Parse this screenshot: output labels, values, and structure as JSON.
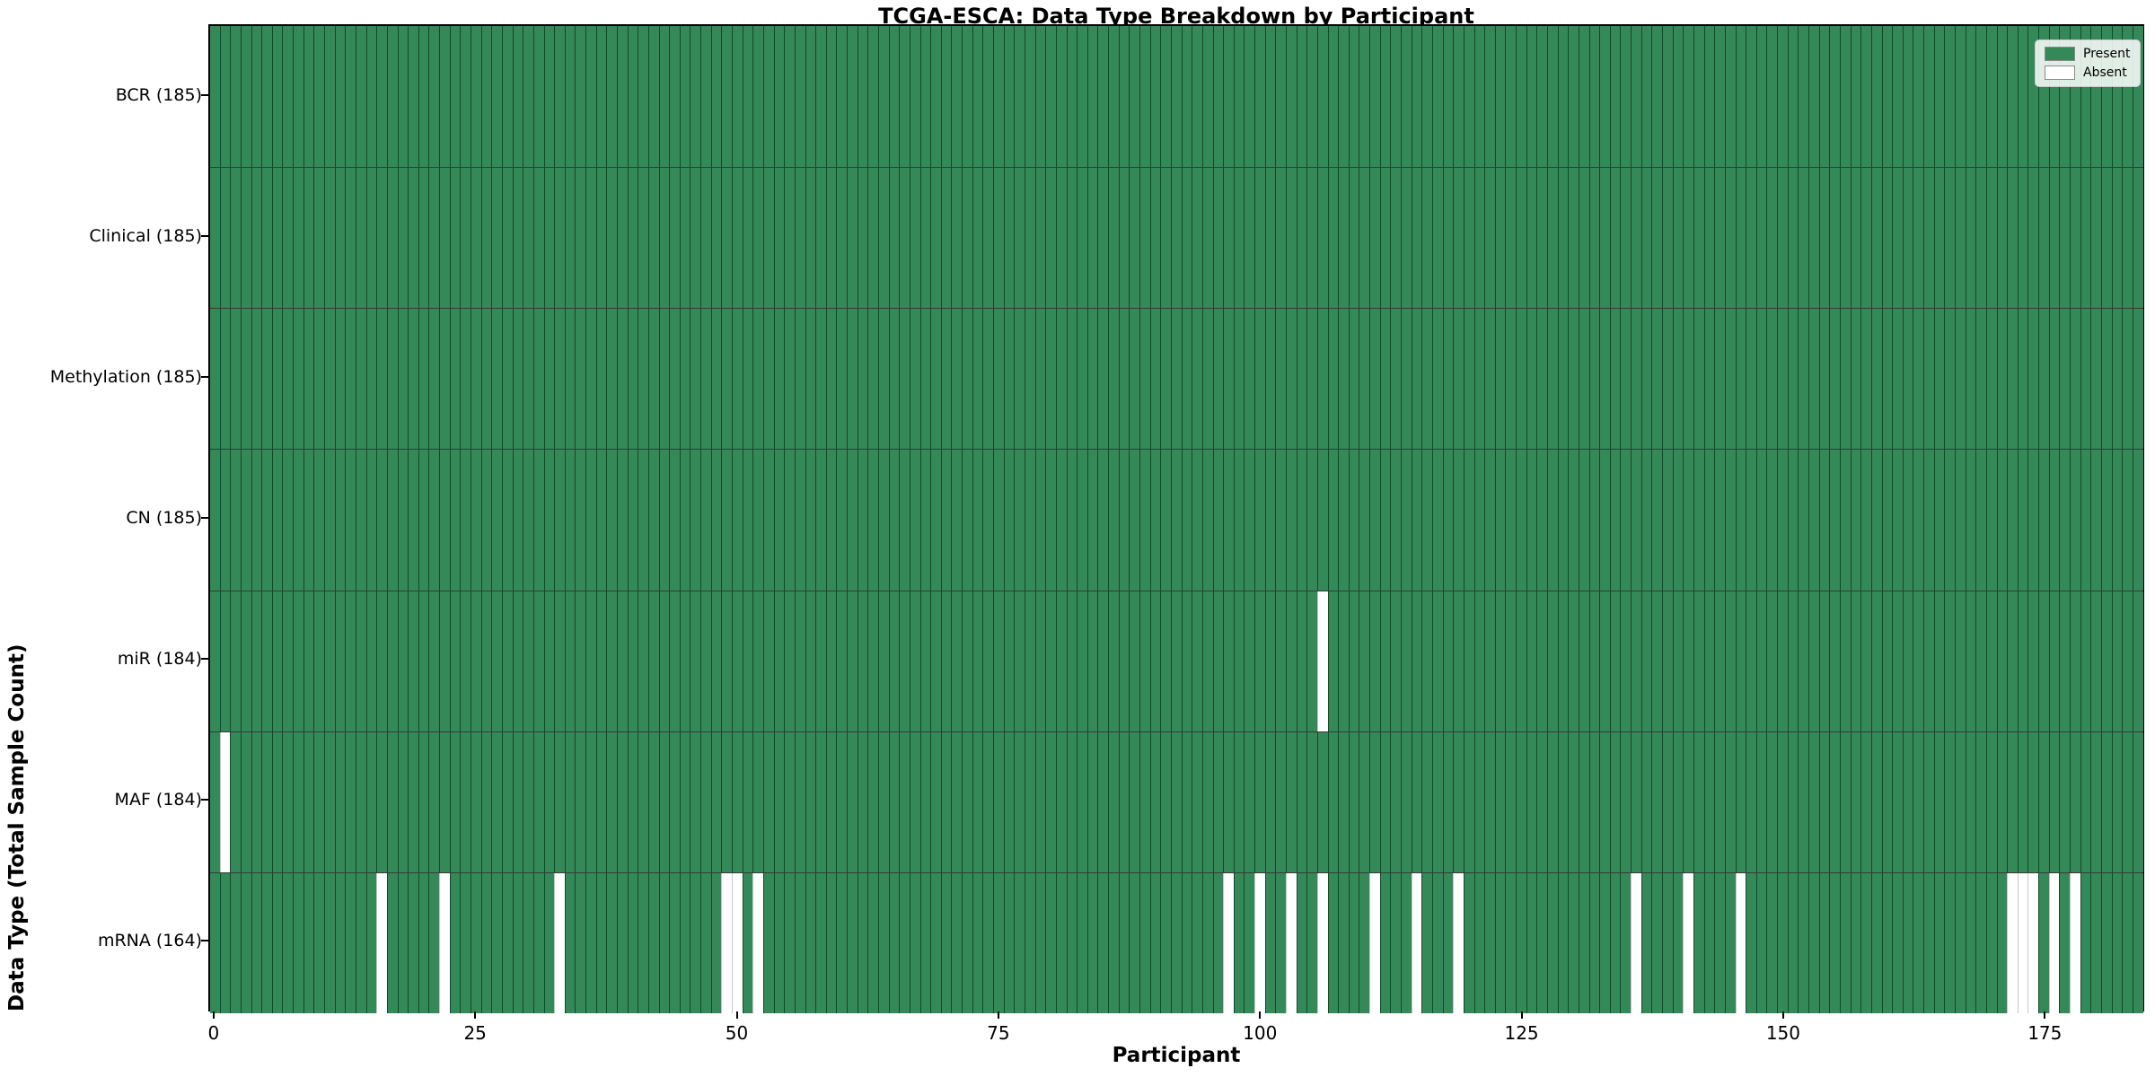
{
  "chart_data": {
    "type": "heatmap",
    "title": "TCGA-ESCA: Data Type Breakdown by Participant",
    "xlabel": "Participant",
    "ylabel": "Data Type (Total Sample Count)",
    "n_participants": 185,
    "x_ticks": [
      0,
      25,
      50,
      75,
      100,
      125,
      150,
      175
    ],
    "xlim": [
      -0.5,
      184.5
    ],
    "grid": false,
    "legend_position": "upper right",
    "colors": {
      "present": "#338a58",
      "absent": "#ffffff"
    },
    "legend": [
      {
        "label": "Present",
        "color": "#338a58"
      },
      {
        "label": "Absent",
        "color": "#ffffff"
      }
    ],
    "rows": [
      {
        "label": "BCR (185)",
        "data_type": "BCR",
        "total": 185,
        "absent_participants": []
      },
      {
        "label": "Clinical (185)",
        "data_type": "Clinical",
        "total": 185,
        "absent_participants": []
      },
      {
        "label": "Methylation (185)",
        "data_type": "Methylation",
        "total": 185,
        "absent_participants": []
      },
      {
        "label": "CN (185)",
        "data_type": "CN",
        "total": 185,
        "absent_participants": []
      },
      {
        "label": "miR (184)",
        "data_type": "miR",
        "total": 184,
        "absent_participants": [
          106
        ]
      },
      {
        "label": "MAF (184)",
        "data_type": "MAF",
        "total": 184,
        "absent_participants": [
          1
        ]
      },
      {
        "label": "mRNA (164)",
        "data_type": "mRNA",
        "total": 164,
        "absent_participants": [
          16,
          22,
          33,
          49,
          50,
          52,
          97,
          100,
          103,
          106,
          111,
          115,
          119,
          136,
          141,
          146,
          172,
          173,
          174,
          176,
          178
        ]
      }
    ]
  }
}
